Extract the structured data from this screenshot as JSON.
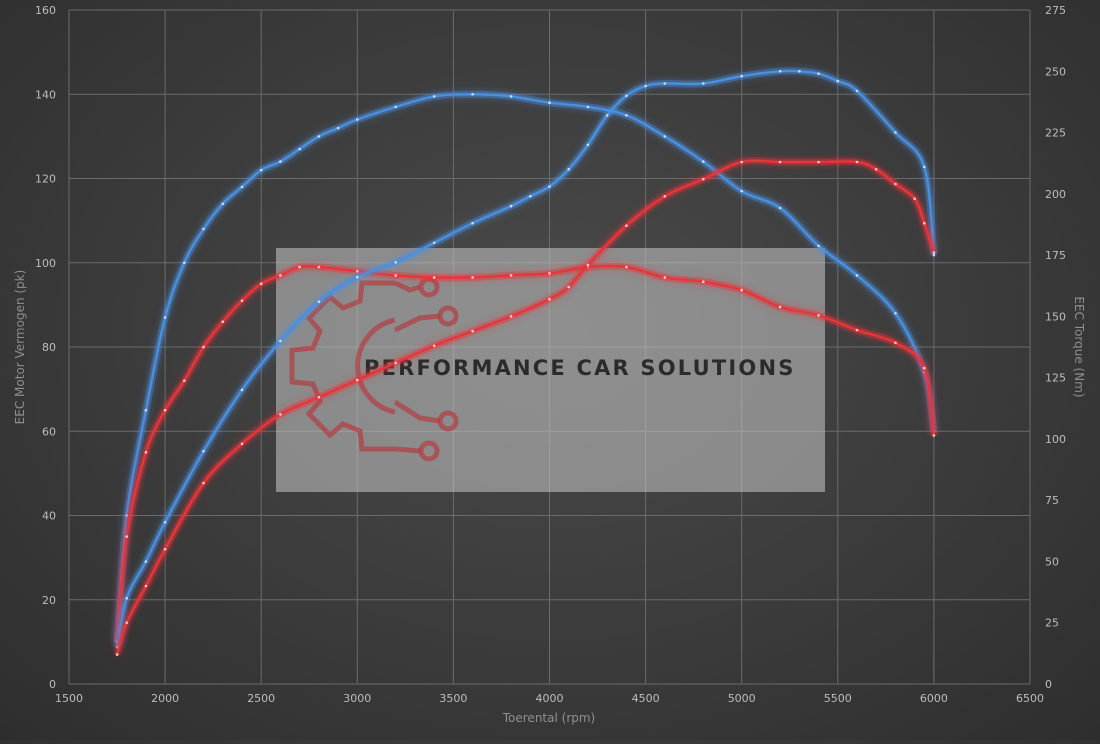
{
  "chart_data": {
    "type": "line",
    "xlabel": "Toerental (rpm)",
    "ylabel": "EEC Motor Vermogen (pk)",
    "y2label": "EEC Torque (Nm)",
    "xlim": [
      1500,
      6500
    ],
    "ylim": [
      0,
      160
    ],
    "y2lim": [
      0,
      275
    ],
    "xticks": [
      1500,
      2000,
      2500,
      3000,
      3500,
      4000,
      4500,
      5000,
      5500,
      6000,
      6500
    ],
    "yticks": [
      0,
      20,
      40,
      60,
      80,
      100,
      120,
      140,
      160
    ],
    "y2ticks": [
      0,
      25,
      50,
      75,
      100,
      125,
      150,
      175,
      200,
      225,
      250,
      275
    ],
    "grid": true,
    "watermark": "PERFORMANCE CAR SOLUTIONS",
    "series": [
      {
        "axis": "left",
        "color": "#4a8fe0",
        "x": [
          1750,
          1800,
          1900,
          2000,
          2100,
          2200,
          2300,
          2400,
          2500,
          2600,
          2700,
          2800,
          2900,
          3000,
          3200,
          3400,
          3600,
          3800,
          4000,
          4200,
          4400,
          4600,
          4800,
          5000,
          5200,
          5400,
          5600,
          5800,
          5950,
          6000
        ],
        "y": [
          10,
          40,
          65,
          87,
          100,
          108,
          114,
          118,
          122,
          124,
          127,
          130,
          132,
          134,
          137,
          139.5,
          140,
          139.5,
          138,
          137,
          135,
          130,
          124,
          117,
          113,
          104,
          97,
          88,
          74,
          60
        ]
      },
      {
        "axis": "left",
        "color": "#e8353a",
        "x": [
          1750,
          1800,
          1900,
          2000,
          2100,
          2200,
          2300,
          2400,
          2500,
          2600,
          2700,
          2800,
          3000,
          3200,
          3400,
          3600,
          3800,
          4000,
          4200,
          4400,
          4600,
          4800,
          5000,
          5200,
          5400,
          5600,
          5800,
          5950,
          6000
        ],
        "y": [
          10,
          35,
          55,
          65,
          72,
          80,
          86,
          91,
          95,
          97,
          99,
          99,
          98,
          97,
          96.5,
          96.5,
          97,
          97.5,
          99,
          99,
          96.5,
          95.5,
          93.5,
          89.5,
          87.5,
          84,
          81,
          75,
          59
        ]
      },
      {
        "axis": "right",
        "color": "#4a8fe0",
        "x": [
          1750,
          1800,
          1900,
          2000,
          2200,
          2400,
          2600,
          2800,
          3000,
          3200,
          3400,
          3600,
          3800,
          3900,
          4000,
          4100,
          4200,
          4300,
          4400,
          4500,
          4600,
          4800,
          5000,
          5200,
          5300,
          5400,
          5500,
          5600,
          5800,
          5950,
          6000
        ],
        "y": [
          15,
          35,
          50,
          66,
          95,
          120,
          140,
          156,
          166,
          172,
          180,
          188,
          195,
          199,
          203,
          210,
          220,
          232,
          240,
          244,
          245,
          245,
          248,
          250,
          250,
          249,
          246,
          242,
          225,
          211,
          175
        ]
      },
      {
        "axis": "right",
        "color": "#e8353a",
        "x": [
          1750,
          1800,
          1900,
          2000,
          2200,
          2400,
          2600,
          2800,
          3000,
          3200,
          3400,
          3600,
          3800,
          4000,
          4100,
          4200,
          4400,
          4600,
          4800,
          5000,
          5200,
          5400,
          5600,
          5700,
          5800,
          5900,
          5950,
          6000
        ],
        "y": [
          12,
          25,
          40,
          55,
          82,
          98,
          110,
          117,
          124,
          131,
          138,
          144,
          150,
          157,
          162,
          171,
          187,
          199,
          206,
          213,
          213,
          213,
          213,
          210,
          204,
          198,
          188,
          176
        ]
      }
    ]
  }
}
